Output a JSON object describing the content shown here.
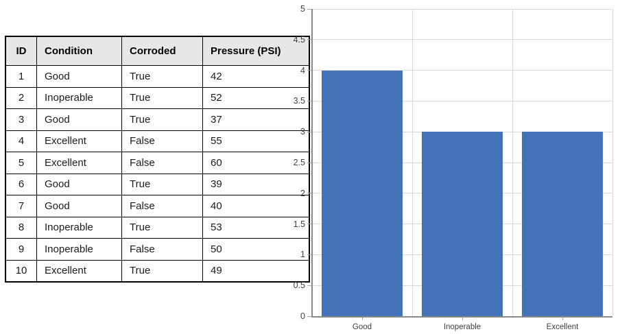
{
  "table": {
    "columns": [
      "ID",
      "Condition",
      "Corroded",
      "Pressure (PSI)"
    ],
    "rows": [
      [
        "1",
        "Good",
        "True",
        "42"
      ],
      [
        "2",
        "Inoperable",
        "True",
        "52"
      ],
      [
        "3",
        "Good",
        "True",
        "37"
      ],
      [
        "4",
        "Excellent",
        "False",
        "55"
      ],
      [
        "5",
        "Excellent",
        "False",
        "60"
      ],
      [
        "6",
        "Good",
        "True",
        "39"
      ],
      [
        "7",
        "Good",
        "False",
        "40"
      ],
      [
        "8",
        "Inoperable",
        "True",
        "53"
      ],
      [
        "9",
        "Inoperable",
        "False",
        "50"
      ],
      [
        "10",
        "Excellent",
        "True",
        "49"
      ]
    ],
    "header_bg": "#E7E7E7",
    "border_color": "#000000"
  },
  "chart_data": {
    "type": "bar",
    "categories": [
      "Good",
      "Inoperable",
      "Excellent"
    ],
    "values": [
      4,
      3,
      3
    ],
    "title": "",
    "xlabel": "",
    "ylabel": "",
    "ylim": [
      0,
      5
    ],
    "ytick_step": 0.5,
    "ytick_labels": [
      "0",
      "0.5",
      "1",
      "1.5",
      "2",
      "2.5",
      "3",
      "3.5",
      "4",
      "4.5",
      "5"
    ],
    "grid": true,
    "legend_position": "none",
    "bar_color": "#4273B7",
    "gridline_color": "#D9D9D9",
    "axis_color": "#898989",
    "tick_color": "#A6A6A6",
    "label_color": "#404040"
  }
}
